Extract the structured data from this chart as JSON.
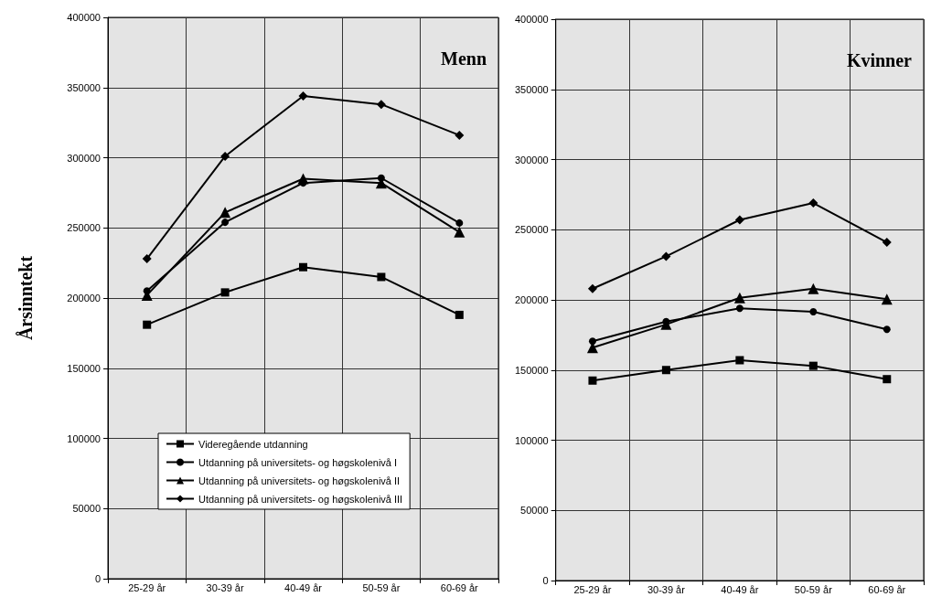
{
  "chart_data": [
    {
      "type": "line",
      "title": "Menn",
      "ylabel": "Årsinntekt",
      "categories": [
        "25-29 år",
        "30-39 år",
        "40-49 år",
        "50-59 år",
        "60-69 år"
      ],
      "ylim": [
        0,
        400000
      ],
      "yticks": [
        0,
        50000,
        100000,
        150000,
        200000,
        250000,
        300000,
        350000,
        400000
      ],
      "grid": true,
      "legend": "bottom",
      "line_style": "solid",
      "series": [
        {
          "name": "Videregående utdanning",
          "color": "#000000",
          "marker": "square",
          "values": [
            181000,
            204000,
            222000,
            215000,
            188000
          ]
        },
        {
          "name": "Utdanning på universitets- og høgskolenivå I",
          "color": "#000000",
          "marker": "circle",
          "values": [
            205000,
            254000,
            282000,
            285500,
            253500
          ]
        },
        {
          "name": "Utdanning på universitets- og høgskolenivå II",
          "color": "#000000",
          "marker": "triangle",
          "values": [
            202000,
            261000,
            285000,
            282000,
            247000
          ]
        },
        {
          "name": "Utdanning på universitets- og høgskolenivå III",
          "color": "#000000",
          "marker": "diamond",
          "values": [
            228000,
            301000,
            344000,
            338000,
            316000
          ]
        }
      ]
    },
    {
      "type": "line",
      "title": "Kvinner",
      "categories": [
        "25-29 år",
        "30-39 år",
        "40-49 år",
        "50-59 år",
        "60-69 år"
      ],
      "ylim": [
        0,
        400000
      ],
      "yticks": [
        0,
        50000,
        100000,
        150000,
        200000,
        250000,
        300000,
        350000,
        400000
      ],
      "grid": true,
      "line_style": "solid",
      "series": [
        {
          "color": "#000000",
          "marker": "square",
          "values": [
            142500,
            150000,
            157000,
            153000,
            143500
          ]
        },
        {
          "color": "#000000",
          "marker": "circle",
          "values": [
            170500,
            184500,
            194000,
            191500,
            179000
          ]
        },
        {
          "color": "#000000",
          "marker": "triangle",
          "values": [
            166000,
            182500,
            201500,
            208000,
            200500
          ]
        },
        {
          "color": "#000000",
          "marker": "diamond",
          "values": [
            208000,
            231000,
            257000,
            269000,
            241000
          ]
        }
      ]
    }
  ]
}
